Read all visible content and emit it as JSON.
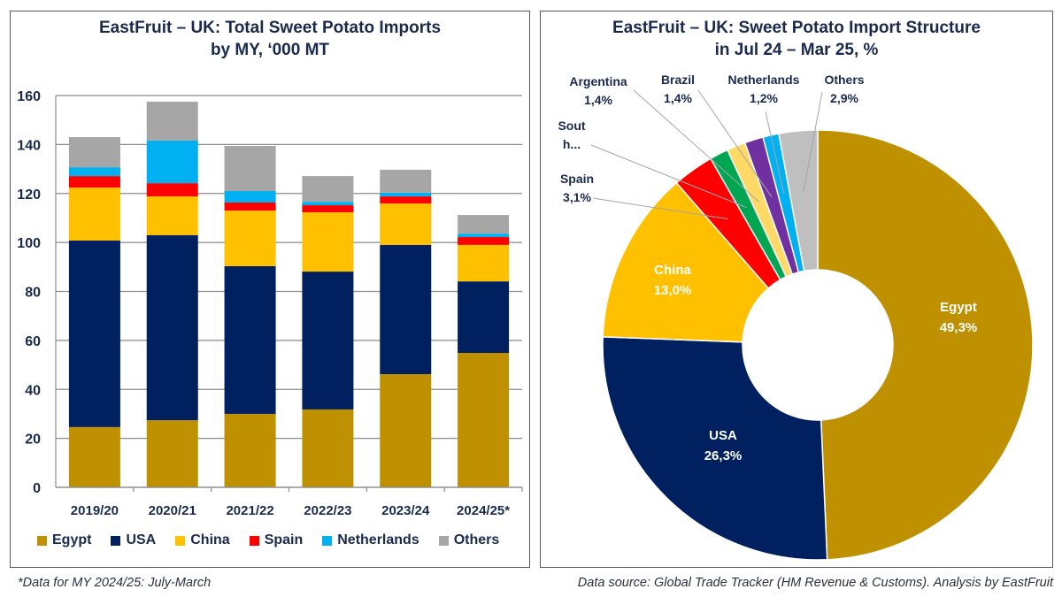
{
  "left_panel": {
    "title_line1": "EastFruit –  UK: Total Sweet Potato Imports",
    "title_line2": "by MY, ‘000 MT"
  },
  "right_panel": {
    "title_line1": "EastFruit – UK: Sweet Potato Import Structure",
    "title_line2": "in Jul 24 – Mar 25, %"
  },
  "footnotes": {
    "left": "*Data for MY 2024/25: July-March",
    "right": "Data source: Global Trade Tracker (HM Revenue & Customs). Analysis by EastFruit"
  },
  "legend": [
    {
      "label": "Egypt",
      "color": "#bf9000"
    },
    {
      "label": "USA",
      "color": "#002060"
    },
    {
      "label": "China",
      "color": "#ffc000"
    },
    {
      "label": "Spain",
      "color": "#ff0000"
    },
    {
      "label": "Netherlands",
      "color": "#00b0f0"
    },
    {
      "label": "Others",
      "color": "#a6a6a6"
    }
  ],
  "chart_data": [
    {
      "type": "bar",
      "stacked": true,
      "title": "EastFruit – UK: Total Sweet Potato Imports by MY, ‘000 MT",
      "xlabel": "",
      "ylabel": "",
      "ylim": [
        0,
        160
      ],
      "yticks": [
        0,
        20,
        40,
        60,
        80,
        100,
        120,
        140,
        160
      ],
      "grid": true,
      "legend_position": "bottom",
      "categories": [
        "2019/20",
        "2020/21",
        "2021/22",
        "2022/23",
        "2023/24",
        "2024/25*"
      ],
      "series": [
        {
          "name": "Egypt",
          "color": "#bf9000",
          "values": [
            24.6,
            27.4,
            30.0,
            31.8,
            46.2,
            54.9
          ]
        },
        {
          "name": "USA",
          "color": "#002060",
          "values": [
            76.2,
            75.6,
            60.3,
            56.3,
            52.8,
            29.2
          ]
        },
        {
          "name": "China",
          "color": "#ffc000",
          "values": [
            21.6,
            15.8,
            22.7,
            24.2,
            16.9,
            14.9
          ]
        },
        {
          "name": "Spain",
          "color": "#ff0000",
          "values": [
            4.7,
            5.4,
            3.3,
            2.9,
            2.9,
            3.2
          ]
        },
        {
          "name": "Netherlands",
          "color": "#00b0f0",
          "values": [
            3.6,
            17.4,
            4.7,
            1.4,
            1.5,
            1.4
          ]
        },
        {
          "name": "Others",
          "color": "#a6a6a6",
          "values": [
            12.3,
            15.9,
            18.4,
            10.5,
            9.4,
            7.6
          ]
        }
      ]
    },
    {
      "type": "pie",
      "donut": true,
      "title": "EastFruit – UK: Sweet Potato Import Structure in Jul 24 – Mar 25, %",
      "slices": [
        {
          "label": "Egypt",
          "value": 49.3,
          "display": "49,3%",
          "color": "#bf9000",
          "label_inside": true,
          "label_color": "#ffffff"
        },
        {
          "label": "USA",
          "value": 26.3,
          "display": "26,3%",
          "color": "#002060",
          "label_inside": true,
          "label_color": "#ffffff"
        },
        {
          "label": "China",
          "value": 13.0,
          "display": "13,0%",
          "color": "#ffc000",
          "label_inside": true,
          "label_color": "#ffffff"
        },
        {
          "label": "Spain",
          "value": 3.1,
          "display": "3,1%",
          "color": "#ff0000",
          "label_inside": false
        },
        {
          "label": "Sout h...",
          "value": 1.4,
          "display": "",
          "color": "#00a651",
          "label_inside": false
        },
        {
          "label": "Argentina",
          "value": 1.4,
          "display": "1,4%",
          "color": "#ffd966",
          "label_inside": false
        },
        {
          "label": "Brazil",
          "value": 1.4,
          "display": "1,4%",
          "color": "#7030a0",
          "label_inside": false
        },
        {
          "label": "Netherlands",
          "value": 1.2,
          "display": "1,2%",
          "color": "#00b0f0",
          "label_inside": false
        },
        {
          "label": "Others",
          "value": 2.9,
          "display": "2,9%",
          "color": "#bfbfbf",
          "label_inside": false
        }
      ]
    }
  ]
}
